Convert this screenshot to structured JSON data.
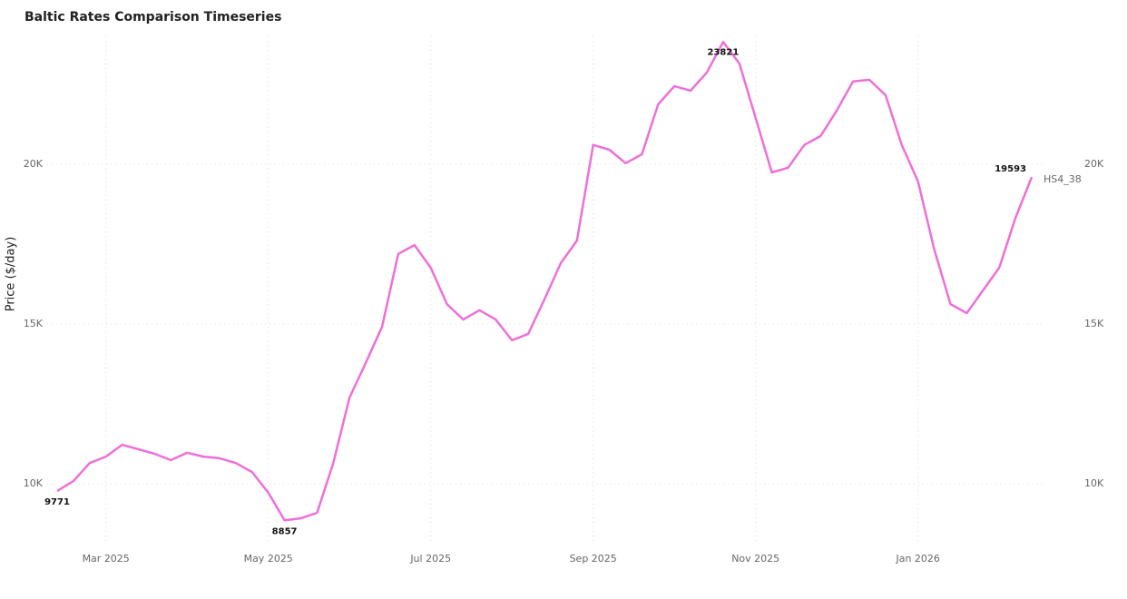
{
  "chart_data": {
    "type": "line",
    "title": "Baltic Rates Comparison Timeseries",
    "y_label": "Price ($/day)",
    "categories": [
      null,
      null,
      null,
      "Mar 2025",
      null,
      null,
      null,
      null,
      null,
      null,
      null,
      null,
      null,
      "May 2025",
      null,
      null,
      null,
      null,
      null,
      null,
      null,
      null,
      null,
      "Jul 2025",
      null,
      null,
      null,
      null,
      null,
      null,
      null,
      null,
      null,
      "Sep 2025",
      null,
      null,
      null,
      null,
      null,
      null,
      null,
      null,
      null,
      "Nov 2025",
      null,
      null,
      null,
      null,
      null,
      null,
      null,
      null,
      null,
      "Jan 2026",
      null,
      null,
      null,
      null,
      null,
      null,
      null
    ],
    "series": [
      {
        "name": "HS4_38",
        "color": "#ee6fd9",
        "values": [
          9771,
          10085,
          10650,
          10850,
          11220,
          11080,
          10940,
          10740,
          10970,
          10850,
          10800,
          10650,
          10370,
          9720,
          8857,
          8920,
          9090,
          10650,
          12700,
          13780,
          14910,
          17190,
          17470,
          16760,
          15620,
          15140,
          15430,
          15140,
          14490,
          14690,
          15770,
          16900,
          17610,
          20600,
          20450,
          20030,
          20310,
          21870,
          22440,
          22300,
          22870,
          23821,
          23150,
          21450,
          19740,
          19890,
          20600,
          20880,
          21680,
          22590,
          22640,
          22160,
          20600,
          19460,
          17330,
          15620,
          15340,
          16050,
          16760,
          18320,
          19593
        ]
      }
    ],
    "ylim": [
      8100,
      24000
    ],
    "yticks": [
      {
        "value": 10000,
        "label": "10K"
      },
      {
        "value": 15000,
        "label": "15K"
      },
      {
        "value": 20000,
        "label": "20K"
      }
    ],
    "grid": true
  }
}
